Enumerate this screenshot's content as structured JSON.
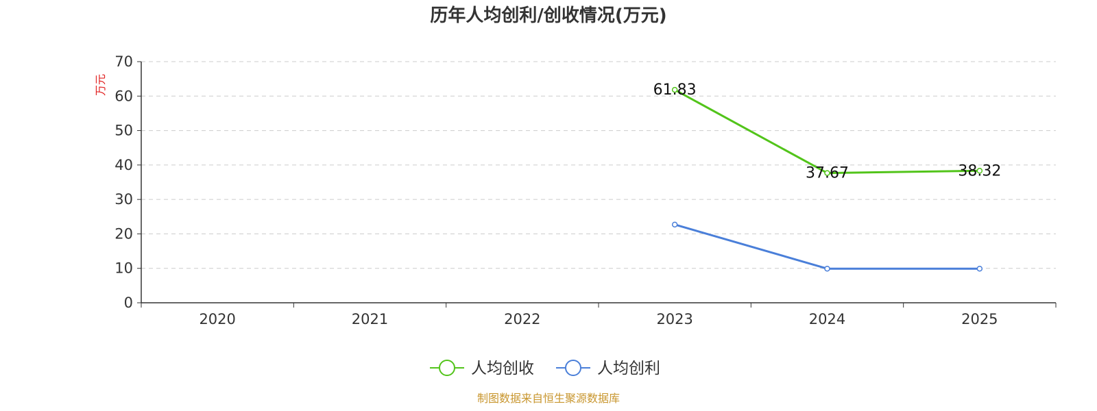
{
  "chart_data": {
    "type": "line",
    "title": "历年人均创利/创收情况(万元)",
    "ylabel": "万元",
    "xlabel": "",
    "categories": [
      "2020",
      "2021",
      "2022",
      "2023",
      "2024",
      "2025"
    ],
    "y_ticks": [
      "0",
      "10",
      "20",
      "30",
      "40",
      "50",
      "60",
      "70"
    ],
    "ylim": [
      0,
      70
    ],
    "grid": true,
    "legend_position": "bottom-center",
    "series": [
      {
        "name": "人均创收",
        "color": "#52c41a",
        "values": [
          null,
          null,
          null,
          61.83,
          37.67,
          38.32
        ],
        "labels": [
          "",
          "",
          "",
          "61.83",
          "37.67",
          "38.32"
        ]
      },
      {
        "name": "人均创利",
        "color": "#4a7fd9",
        "values": [
          null,
          null,
          null,
          22.7,
          9.9,
          9.9
        ],
        "labels": [
          "",
          "",
          "",
          "",
          "",
          ""
        ]
      }
    ]
  },
  "source_text": "制图数据来自恒生聚源数据库",
  "colors": {
    "title": "#333333",
    "axis": "#333333",
    "grid": "#cccccc",
    "ylabel": "#e02020",
    "source": "#c8962e"
  }
}
